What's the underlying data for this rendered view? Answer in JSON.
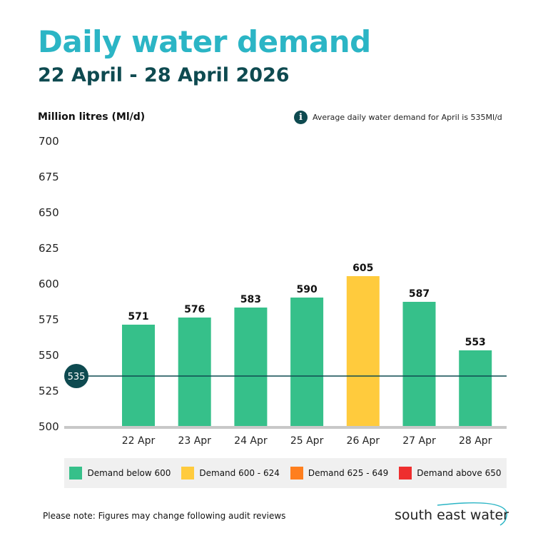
{
  "header": {
    "title": "Daily water demand",
    "subtitle": "22 April - 28 April 2026"
  },
  "note": {
    "icon": "info-icon",
    "text": "Average daily water demand for April is 535Ml/d"
  },
  "chart_data": {
    "type": "bar",
    "ylabel": "Million litres (Ml/d)",
    "ylim": [
      500,
      700
    ],
    "yticks": [
      700,
      675,
      650,
      625,
      600,
      575,
      550,
      525,
      500
    ],
    "categories": [
      "22 Apr",
      "23 Apr",
      "24 Apr",
      "25 Apr",
      "26 Apr",
      "27 Apr",
      "28 Apr"
    ],
    "values": [
      571,
      576,
      583,
      590,
      605,
      587,
      553
    ],
    "average": {
      "value": 535,
      "label": "535"
    },
    "grid": false,
    "legend_position": "bottom",
    "bands": [
      {
        "label": "Demand below 600",
        "color": "#36c08a",
        "max": 600
      },
      {
        "label": "Demand 600 - 624",
        "color": "#ffcb3d",
        "max": 625
      },
      {
        "label": "Demand 625 - 649",
        "color": "#ff7f1e",
        "max": 650
      },
      {
        "label": "Demand above 650",
        "color": "#ee2e2e",
        "max": 100000
      }
    ]
  },
  "footer": {
    "note": "Please note: Figures may change following audit reviews",
    "logo_text": "south east water"
  },
  "colors": {
    "title": "#2bb5c5",
    "dark": "#0e4a50",
    "axis": "#c8c8c8"
  }
}
